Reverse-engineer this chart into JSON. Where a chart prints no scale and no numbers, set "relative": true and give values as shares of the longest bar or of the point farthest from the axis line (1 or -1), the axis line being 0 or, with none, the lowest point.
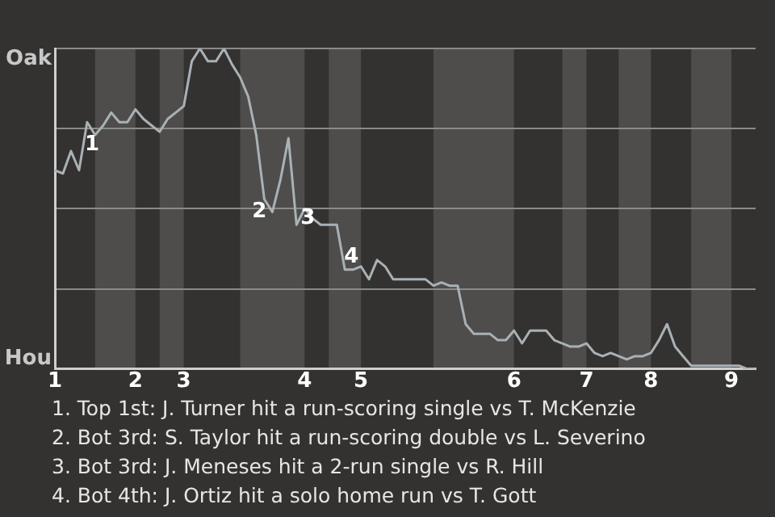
{
  "chart_data": {
    "type": "line",
    "relative": true,
    "categories": [
      "1",
      null,
      null,
      null,
      null,
      null,
      null,
      null,
      null,
      null,
      "2",
      null,
      null,
      null,
      null,
      null,
      "3",
      null,
      null,
      null,
      null,
      null,
      null,
      null,
      null,
      null,
      null,
      null,
      null,
      null,
      null,
      "4",
      null,
      null,
      null,
      null,
      null,
      null,
      "5",
      null,
      null,
      null,
      null,
      null,
      null,
      null,
      null,
      null,
      null,
      null,
      null,
      null,
      null,
      null,
      null,
      null,
      null,
      "6",
      null,
      null,
      null,
      null,
      null,
      null,
      null,
      null,
      "7",
      null,
      null,
      null,
      null,
      null,
      null,
      null,
      "8",
      null,
      null,
      null,
      null,
      null,
      null,
      null,
      null,
      null,
      "9",
      null,
      null,
      null
    ],
    "grid": "y",
    "legend": false,
    "marker": "none",
    "line_style": "solid",
    "series": [
      {
        "color": "#a9b1b5",
        "values": [
          0.62,
          0.61,
          0.68,
          0.62,
          0.77,
          0.73,
          0.76,
          0.8,
          0.77,
          0.77,
          0.81,
          0.78,
          0.76,
          0.74,
          0.78,
          0.8,
          0.82,
          0.96,
          1,
          0.96,
          0.96,
          1,
          0.95,
          0.91,
          0.85,
          0.73,
          0.53,
          0.49,
          0.59,
          0.72,
          0.45,
          0.5,
          0.47,
          0.45,
          0.45,
          0.45,
          0.31,
          0.31,
          0.32,
          0.28,
          0.34,
          0.32,
          0.28,
          0.28,
          0.28,
          0.28,
          0.28,
          0.26,
          0.27,
          0.26,
          0.26,
          0.14,
          0.11,
          0.11,
          0.11,
          0.09,
          0.09,
          0.12,
          0.08,
          0.12,
          0.12,
          0.12,
          0.09,
          0.08,
          0.07,
          0.07,
          0.08,
          0.05,
          0.04,
          0.05,
          0.04,
          0.03,
          0.04,
          0.04,
          0.05,
          0.09,
          0.14,
          0.07,
          0.04,
          0.01,
          0.01,
          0.01,
          0.01,
          0.01,
          0.01,
          0.01,
          0,
          0
        ]
      }
    ],
    "annotations": [
      "Oak",
      "Hou",
      "1",
      "2",
      "3",
      "4",
      "1. Top 1st: J. Turner hit a run-scoring single vs T. McKenzie",
      "2. Bot 3rd: S. Taylor hit a run-scoring double vs L. Severino",
      "3. Bot 3rd: J. Meneses hit a 2-run single vs R. Hill",
      "4. Bot 4th: J. Ortiz hit a solo home run vs T. Gott"
    ]
  }
}
